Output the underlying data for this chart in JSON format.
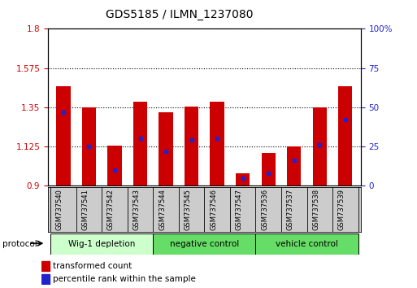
{
  "title": "GDS5185 / ILMN_1237080",
  "samples": [
    "GSM737540",
    "GSM737541",
    "GSM737542",
    "GSM737543",
    "GSM737544",
    "GSM737545",
    "GSM737546",
    "GSM737547",
    "GSM737536",
    "GSM737537",
    "GSM737538",
    "GSM737539"
  ],
  "transformed_count": [
    1.47,
    1.35,
    1.13,
    1.38,
    1.32,
    1.355,
    1.38,
    0.97,
    1.09,
    1.125,
    1.35,
    1.47
  ],
  "percentile_rank": [
    47,
    25,
    10,
    30,
    22,
    29,
    30,
    5,
    8,
    16,
    26,
    42
  ],
  "bar_color": "#cc0000",
  "dot_color": "#2222cc",
  "ylim_left": [
    0.9,
    1.8
  ],
  "ylim_right": [
    0,
    100
  ],
  "yticks_left": [
    0.9,
    1.125,
    1.35,
    1.575,
    1.8
  ],
  "ytick_labels_left": [
    "0.9",
    "1.125",
    "1.35",
    "1.575",
    "1.8"
  ],
  "yticks_right": [
    0,
    25,
    50,
    75,
    100
  ],
  "ytick_labels_right": [
    "0",
    "25",
    "50",
    "75",
    "100%"
  ],
  "group_boundaries": [
    [
      -0.5,
      3.5,
      "Wig-1 depletion",
      "#ccffcc"
    ],
    [
      3.5,
      7.5,
      "negative control",
      "#66dd66"
    ],
    [
      7.5,
      11.5,
      "vehicle control",
      "#66dd66"
    ]
  ],
  "protocol_label": "protocol",
  "legend_red_label": "transformed count",
  "legend_blue_label": "percentile rank within the sample",
  "bar_width": 0.55,
  "baseline": 0.9,
  "grid_color": "#000000",
  "bg_color": "#ffffff",
  "plot_bg": "#ffffff",
  "tick_label_color_left": "#cc0000",
  "tick_label_color_right": "#2222cc",
  "sample_box_color": "#cccccc",
  "title_fontsize": 10
}
